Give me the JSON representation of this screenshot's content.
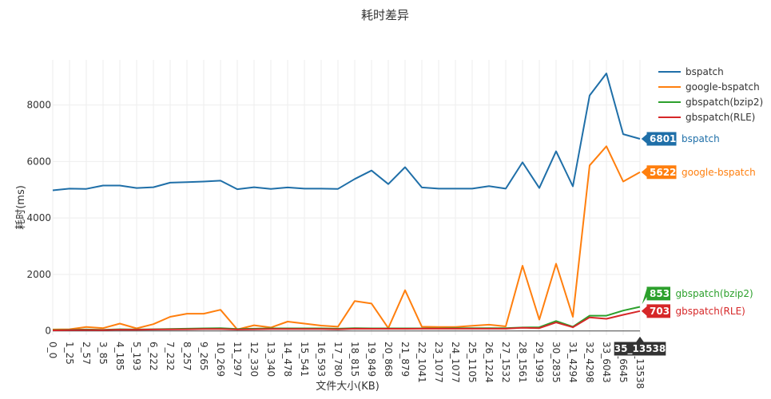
{
  "chart_data": {
    "type": "line",
    "title": "耗时差异",
    "xlabel": "文件大小(KB)",
    "ylabel": "耗时(ms)",
    "ylim": [
      -150,
      9600
    ],
    "yticks": [
      0,
      2000,
      4000,
      6000,
      8000
    ],
    "grid": true,
    "legend_position": "top-right",
    "categories": [
      "0_0",
      "1_25",
      "2_57",
      "3_85",
      "4_185",
      "5_193",
      "6_222",
      "7_232",
      "8_257",
      "9_265",
      "10_269",
      "11_297",
      "12_330",
      "13_340",
      "14_478",
      "15_541",
      "16_593",
      "17_780",
      "18_815",
      "19_849",
      "20_868",
      "21_879",
      "22_1041",
      "23_1077",
      "24_1077",
      "25_1105",
      "26_1224",
      "27_1532",
      "28_1561",
      "29_1993",
      "30_2835",
      "31_4294",
      "32_4298",
      "33_6043",
      "34_6645",
      "35_13538"
    ],
    "series": [
      {
        "name": "bspatch",
        "color": "#1f6fa8",
        "values": [
          4980,
          5040,
          5030,
          5150,
          5150,
          5060,
          5090,
          5250,
          5270,
          5290,
          5320,
          5020,
          5090,
          5030,
          5080,
          5040,
          5040,
          5030,
          5380,
          5680,
          5200,
          5800,
          5080,
          5040,
          5040,
          5040,
          5130,
          5040,
          5970,
          5060,
          6360,
          5120,
          8340,
          9120,
          6970,
          6801
        ]
      },
      {
        "name": "google-bspatch",
        "color": "#ff7f0e",
        "values": [
          50,
          60,
          140,
          100,
          260,
          90,
          240,
          500,
          610,
          610,
          750,
          50,
          200,
          120,
          330,
          260,
          190,
          150,
          1060,
          970,
          100,
          1440,
          150,
          140,
          140,
          180,
          220,
          160,
          2310,
          400,
          2380,
          500,
          5860,
          6540,
          5290,
          5622
        ]
      },
      {
        "name": "gbspatch(bzip2)",
        "color": "#2ca02c",
        "values": [
          30,
          40,
          50,
          40,
          60,
          50,
          60,
          70,
          80,
          90,
          100,
          70,
          80,
          90,
          90,
          90,
          90,
          80,
          100,
          90,
          90,
          90,
          90,
          90,
          100,
          100,
          100,
          100,
          120,
          130,
          350,
          150,
          540,
          540,
          720,
          853
        ]
      },
      {
        "name": "gbspatch(RLE)",
        "color": "#d62728",
        "values": [
          20,
          30,
          35,
          30,
          45,
          40,
          50,
          55,
          60,
          70,
          70,
          50,
          60,
          70,
          70,
          70,
          70,
          60,
          80,
          75,
          75,
          75,
          80,
          80,
          80,
          80,
          80,
          80,
          110,
          100,
          300,
          130,
          480,
          430,
          570,
          703
        ]
      }
    ],
    "hover": {
      "x_label": "35_13538",
      "points": [
        {
          "value_text": "6801",
          "series": "bspatch"
        },
        {
          "value_text": "5622",
          "series": "google-bspatch"
        },
        {
          "value_text": "853",
          "series": "gbspatch(bzip2)"
        },
        {
          "value_text": "703",
          "series": "gbspatch(RLE)"
        }
      ]
    }
  }
}
